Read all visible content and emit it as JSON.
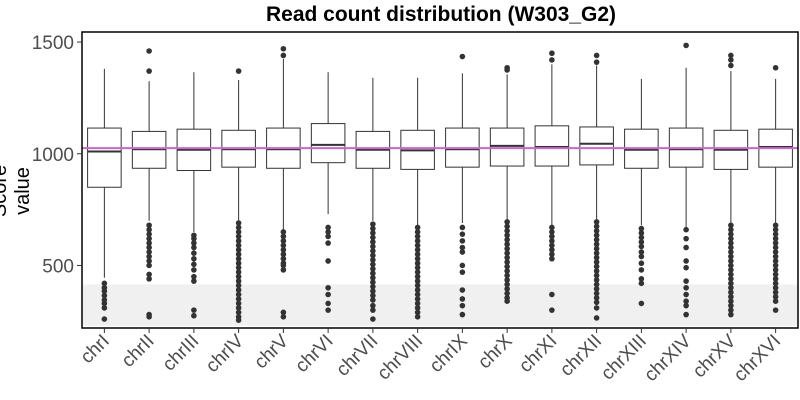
{
  "chart_data": {
    "type": "box",
    "title": "Read count distribution (W303_G2)",
    "xlabel": "",
    "ylabel": "Score value",
    "ylim": [
      220,
      1545
    ],
    "yticks": [
      500,
      1000,
      1500
    ],
    "reference_line": {
      "value": 1025,
      "color": "#cc66cc"
    },
    "shaded_band": {
      "from": 230,
      "to": 415,
      "color": "#f0f0f0"
    },
    "categories": [
      "chrI",
      "chrII",
      "chrIII",
      "chrIV",
      "chrV",
      "chrVI",
      "chrVII",
      "chrVIII",
      "chrIX",
      "chrX",
      "chrXI",
      "chrXII",
      "chrXIII",
      "chrXIV",
      "chrXV",
      "chrXVI"
    ],
    "boxes": [
      {
        "q1": 850,
        "median": 1010,
        "q3": 1115,
        "wmin": 445,
        "wmax": 1380,
        "outliers": [
          420,
          400,
          385,
          365,
          345,
          330,
          310,
          260
        ]
      },
      {
        "q1": 935,
        "median": 1020,
        "q3": 1100,
        "wmin": 700,
        "wmax": 1325,
        "outliers": [
          1460,
          1370,
          680,
          660,
          640,
          620,
          600,
          580,
          560,
          540,
          520,
          500,
          460,
          440,
          280,
          270
        ]
      },
      {
        "q1": 925,
        "median": 1018,
        "q3": 1110,
        "wmin": 650,
        "wmax": 1365,
        "outliers": [
          635,
          620,
          600,
          580,
          555,
          530,
          505,
          480,
          450,
          430,
          300,
          275
        ]
      },
      {
        "q1": 940,
        "median": 1020,
        "q3": 1105,
        "wmin": 700,
        "wmax": 1330,
        "outliers": [
          1370,
          690,
          670,
          650,
          630,
          610,
          590,
          570,
          550,
          530,
          510,
          490,
          470,
          450,
          430,
          410,
          390,
          370,
          350,
          330,
          310,
          290,
          270,
          255
        ]
      },
      {
        "q1": 935,
        "median": 1020,
        "q3": 1115,
        "wmin": 660,
        "wmax": 1425,
        "outliers": [
          1470,
          1440,
          650,
          630,
          610,
          590,
          570,
          550,
          530,
          510,
          500,
          480,
          290,
          270
        ]
      },
      {
        "q1": 960,
        "median": 1040,
        "q3": 1135,
        "wmin": 730,
        "wmax": 1365,
        "outliers": [
          670,
          650,
          630,
          600,
          520,
          400,
          370,
          330,
          300
        ]
      },
      {
        "q1": 935,
        "median": 1018,
        "q3": 1100,
        "wmin": 700,
        "wmax": 1340,
        "outliers": [
          685,
          665,
          645,
          625,
          605,
          585,
          565,
          545,
          525,
          505,
          485,
          465,
          445,
          425,
          405,
          385,
          365,
          345,
          320,
          300,
          260
        ]
      },
      {
        "q1": 930,
        "median": 1015,
        "q3": 1105,
        "wmin": 680,
        "wmax": 1340,
        "outliers": [
          670,
          650,
          630,
          610,
          590,
          570,
          550,
          530,
          510,
          490,
          470,
          450,
          430,
          410,
          390,
          370,
          350,
          330,
          310,
          290,
          270
        ]
      },
      {
        "q1": 940,
        "median": 1020,
        "q3": 1115,
        "wmin": 690,
        "wmax": 1360,
        "outliers": [
          1435,
          670,
          640,
          610,
          580,
          560,
          500,
          470,
          390,
          350,
          320,
          280
        ]
      },
      {
        "q1": 945,
        "median": 1035,
        "q3": 1115,
        "wmin": 700,
        "wmax": 1355,
        "outliers": [
          1385,
          1375,
          695,
          675,
          655,
          635,
          615,
          595,
          575,
          555,
          535,
          515,
          495,
          475,
          455,
          435,
          415,
          395,
          375,
          355,
          340
        ]
      },
      {
        "q1": 945,
        "median": 1030,
        "q3": 1125,
        "wmin": 680,
        "wmax": 1400,
        "outliers": [
          1450,
          1420,
          670,
          650,
          630,
          610,
          590,
          570,
          550,
          530,
          370,
          300
        ]
      },
      {
        "q1": 950,
        "median": 1045,
        "q3": 1120,
        "wmin": 700,
        "wmax": 1395,
        "outliers": [
          1440,
          1410,
          695,
          675,
          655,
          635,
          615,
          595,
          575,
          555,
          535,
          515,
          495,
          475,
          455,
          435,
          415,
          395,
          375,
          355,
          335,
          310,
          265
        ]
      },
      {
        "q1": 935,
        "median": 1018,
        "q3": 1110,
        "wmin": 680,
        "wmax": 1335,
        "outliers": [
          665,
          645,
          625,
          605,
          585,
          560,
          540,
          510,
          480,
          440,
          420,
          330
        ]
      },
      {
        "q1": 940,
        "median": 1020,
        "q3": 1115,
        "wmin": 670,
        "wmax": 1385,
        "outliers": [
          1485,
          660,
          620,
          580,
          520,
          490,
          430,
          400,
          370,
          340,
          320,
          280
        ]
      },
      {
        "q1": 930,
        "median": 1018,
        "q3": 1105,
        "wmin": 690,
        "wmax": 1370,
        "outliers": [
          1440,
          1420,
          1395,
          680,
          660,
          640,
          620,
          600,
          580,
          560,
          540,
          520,
          500,
          480,
          460,
          440,
          420,
          400,
          380,
          360,
          340,
          320,
          300,
          280
        ]
      },
      {
        "q1": 940,
        "median": 1030,
        "q3": 1110,
        "wmin": 690,
        "wmax": 1335,
        "outliers": [
          1385,
          680,
          660,
          640,
          620,
          600,
          580,
          560,
          540,
          520,
          500,
          480,
          460,
          440,
          420,
          400,
          380,
          360,
          340,
          300
        ]
      }
    ]
  }
}
